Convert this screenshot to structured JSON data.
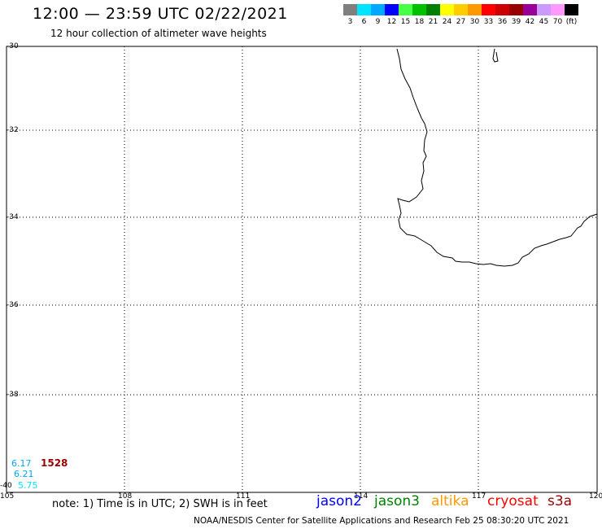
{
  "header": {
    "title": "12:00 — 23:59 UTC 02/22/2021",
    "subtitle": "12 hour collection of altimeter wave heights"
  },
  "legend": {
    "colors": [
      "#7f7f7f",
      "#00e5ff",
      "#00a8ff",
      "#0000ff",
      "#46ff46",
      "#00c000",
      "#008000",
      "#ffff00",
      "#ffcc00",
      "#ff9900",
      "#ff0000",
      "#cc0000",
      "#990000",
      "#990099",
      "#cc99ff",
      "#ff99ff",
      "#000000"
    ],
    "labels": [
      "3",
      "6",
      "9",
      "12",
      "15",
      "18",
      "21",
      "24",
      "27",
      "30",
      "33",
      "36",
      "39",
      "42",
      "45",
      "70",
      "(ft)"
    ]
  },
  "map": {
    "lat_labels": [
      "-30",
      "-32",
      "-34",
      "-36",
      "-38",
      "-40"
    ],
    "lon_labels": [
      "105",
      "108",
      "111",
      "114",
      "117",
      "120"
    ]
  },
  "observations": [
    {
      "value": "6.17",
      "color": "#00a8ff"
    },
    {
      "value": "1528",
      "color": "#990000"
    },
    {
      "value": "6.21",
      "color": "#00a8ff"
    },
    {
      "value": "5.75",
      "color": "#00e5ff"
    }
  ],
  "footer": {
    "note": "note: 1) Time is in UTC; 2) SWH is in feet",
    "satellites": [
      {
        "name": "jason2",
        "color": "#0000ff"
      },
      {
        "name": "jason3",
        "color": "#008000"
      },
      {
        "name": "altika",
        "color": "#ff9900"
      },
      {
        "name": "cryosat",
        "color": "#ff0000"
      },
      {
        "name": "s3a",
        "color": "#990000"
      }
    ],
    "credit": "NOAA/NESDIS Center for Satellite Applications and Research    Feb 25 08:30:20 UTC 2021"
  }
}
